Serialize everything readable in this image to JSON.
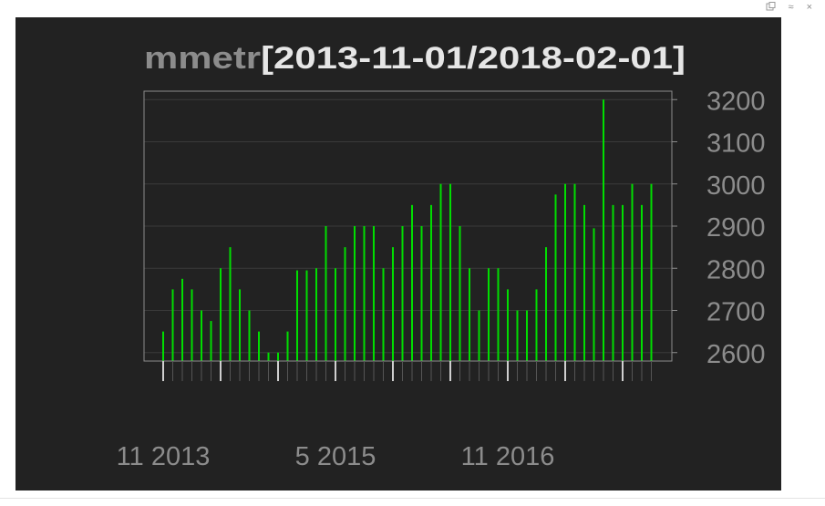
{
  "window_controls": {
    "popout_icon": "popout-icon",
    "maximize_icon": "chevron-up-icon",
    "close_icon": "close-icon",
    "maximize_glyph": "≈",
    "close_glyph": "×"
  },
  "chart_data": {
    "type": "bar",
    "title_prefix": "mmetr",
    "title_range": "[2013-11-01/2018-02-01]",
    "ylim": [
      2580,
      3220
    ],
    "y_ticks": [
      2600,
      2700,
      2800,
      2900,
      3000,
      3100,
      3200
    ],
    "x_labels": [
      {
        "index": 0,
        "text": "11 2013"
      },
      {
        "index": 18,
        "text": "5 2015"
      },
      {
        "index": 36,
        "text": "11 2016"
      }
    ],
    "major_tick_every": 6,
    "values": [
      2650,
      2750,
      2775,
      2750,
      2700,
      2675,
      2800,
      2850,
      2750,
      2700,
      2650,
      2600,
      2600,
      2650,
      2795,
      2795,
      2800,
      2900,
      2800,
      2850,
      2900,
      2900,
      2900,
      2800,
      2850,
      2900,
      2950,
      2900,
      2950,
      3000,
      3000,
      2900,
      2800,
      2700,
      2800,
      2800,
      2750,
      2700,
      2700,
      2750,
      2850,
      2975,
      3000,
      3000,
      2950,
      2895,
      3200,
      2950,
      2950,
      3000,
      2950,
      3000
    ],
    "colors": {
      "bar": "#00dd00",
      "panel_bg": "#222222",
      "grid": "#3a3a3a",
      "frame": "#8c8c8c",
      "text": "#8c8c8c",
      "title_range": "#e6e6e6"
    }
  }
}
